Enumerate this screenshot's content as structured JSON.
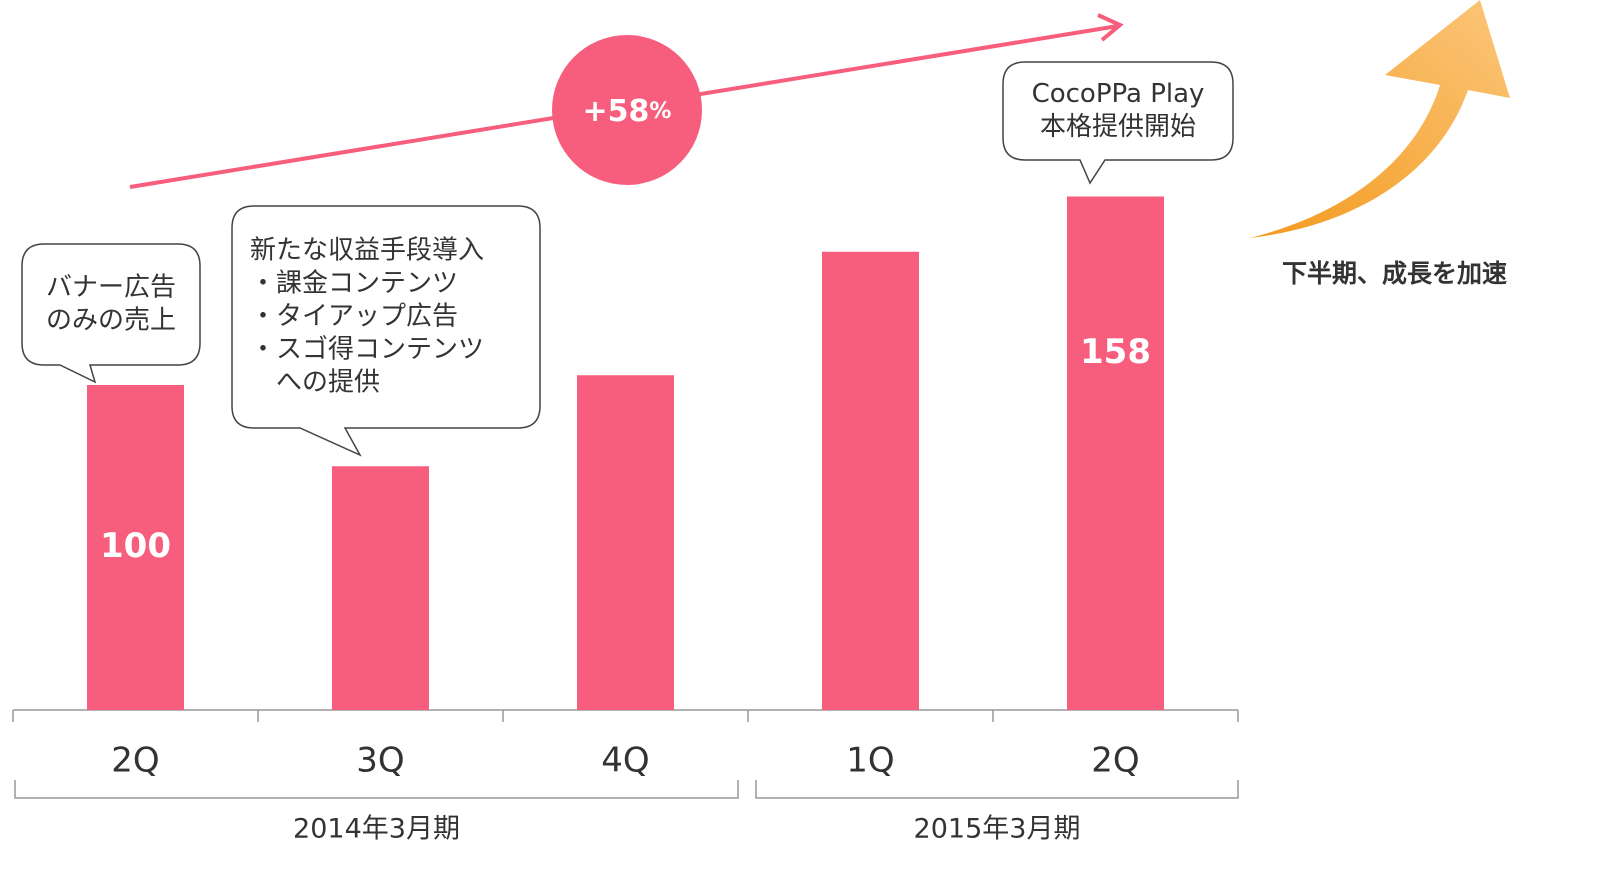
{
  "chart_data": {
    "type": "bar",
    "categories": [
      "2Q",
      "3Q",
      "4Q",
      "1Q",
      "2Q"
    ],
    "values": [
      100,
      75,
      103,
      141,
      158
    ],
    "value_labels": [
      "100",
      null,
      null,
      null,
      "158"
    ],
    "color": "#f75d7d",
    "ylim": [
      0,
      170
    ],
    "groups": [
      {
        "label": "2014年3月期",
        "span": [
          0,
          2
        ]
      },
      {
        "label": "2015年3月期",
        "span": [
          3,
          4
        ]
      }
    ],
    "growth": {
      "number": "+58",
      "unit": "%"
    },
    "callouts": [
      {
        "lines": [
          "バナー広告",
          "のみの売上"
        ]
      },
      {
        "lines": [
          "新たな収益手段導入",
          "・課金コンテンツ",
          "・タイアップ広告",
          "・スゴ得コンテンツ",
          "　への提供"
        ]
      },
      {
        "lines": [
          "CocoPPa Play",
          "本格提供開始"
        ]
      }
    ],
    "side_note": "下半期、成長を加速"
  }
}
